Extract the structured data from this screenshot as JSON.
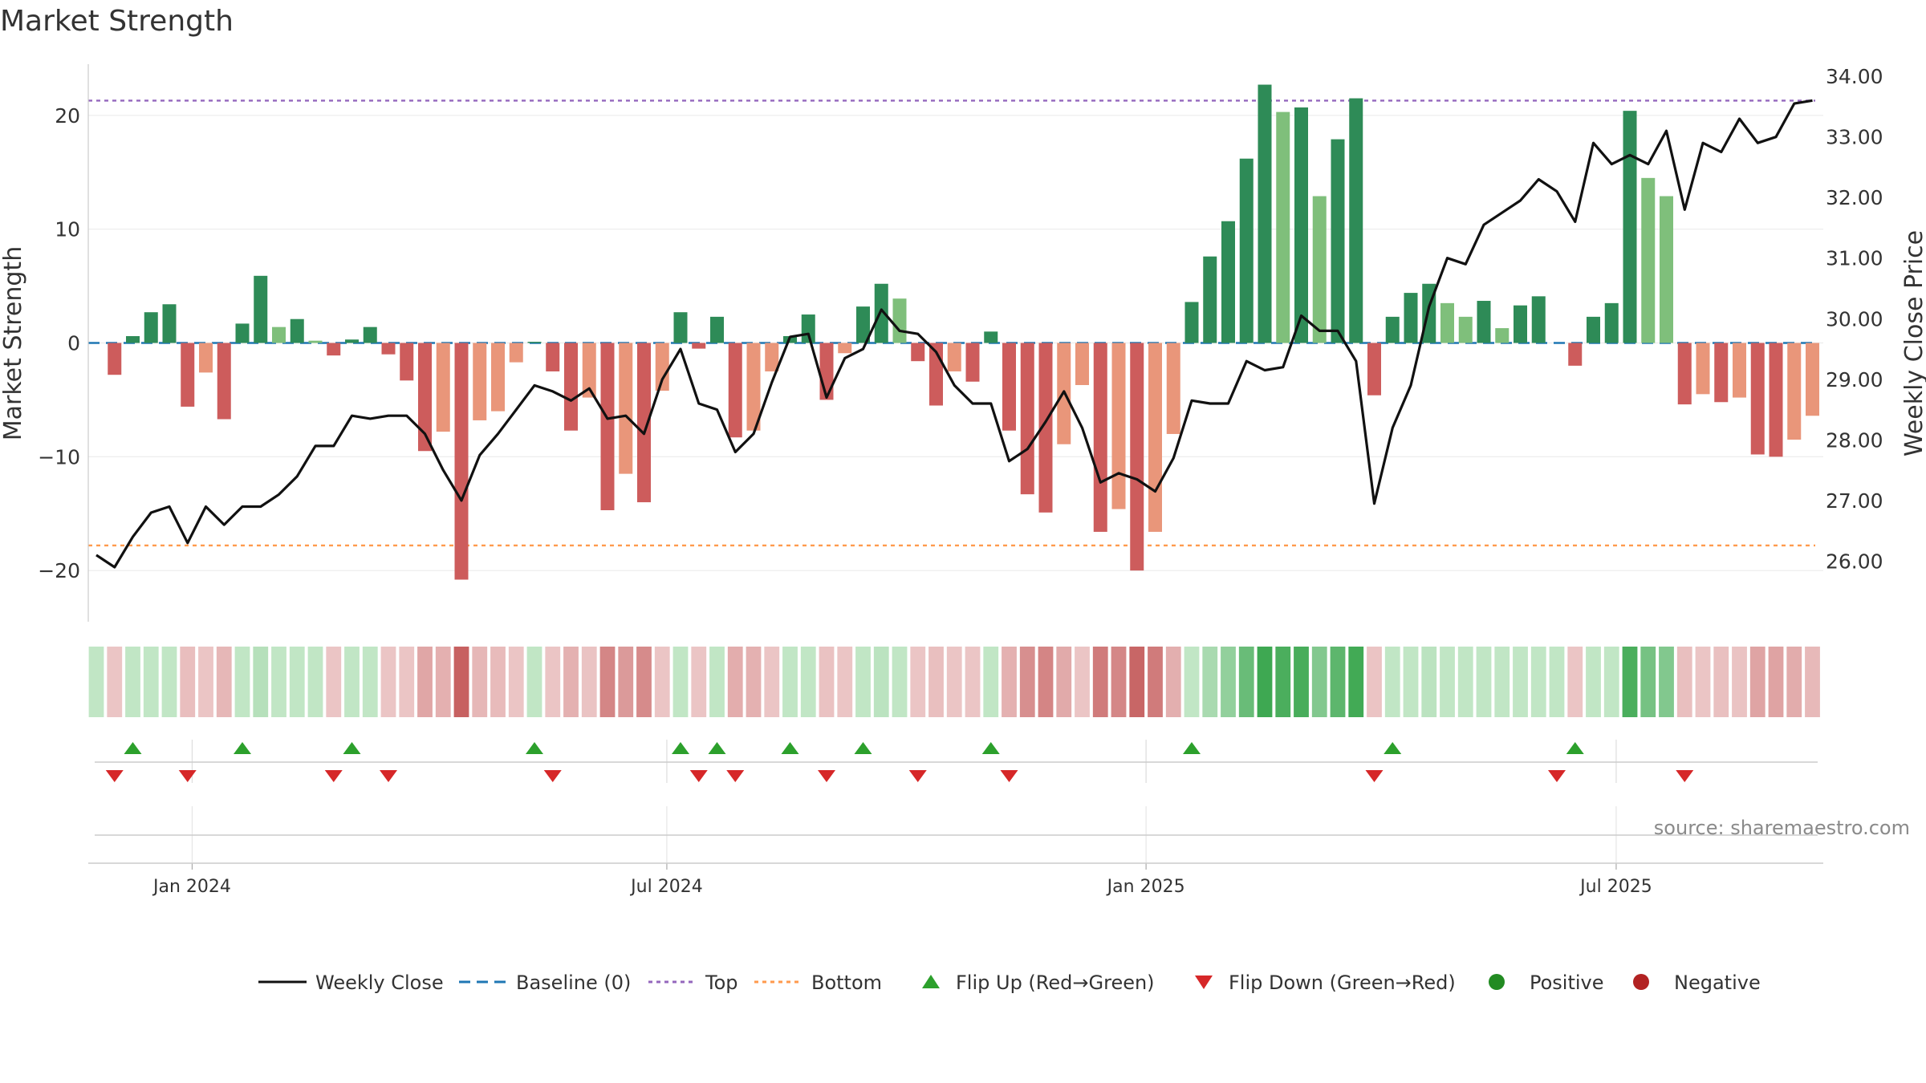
{
  "title": "Market Strength",
  "source_text": "source: sharemaestro.com",
  "colors": {
    "pos_strong": "#2e8b57",
    "pos_light": "#7fbf7b",
    "neg_strong": "#cd5c5c",
    "neg_light": "#e9967a",
    "line": "#111111",
    "baseline": "#1f77b4",
    "top": "#9467bd",
    "bottom": "#ff9a4d",
    "flip_up": "#2ca02c",
    "flip_down": "#d62728",
    "positive": "#228b22",
    "negative": "#b22222"
  },
  "chart_data": {
    "type": "bar",
    "title": "Market Strength",
    "ylabel_left": "Market Strength",
    "ylabel_right": "Weekly Close Price",
    "ylim_left": [
      -24.5,
      24.5
    ],
    "ylim_right": [
      25.0,
      34.2
    ],
    "left_ticks": [
      20,
      10,
      0,
      -10,
      -20
    ],
    "left_tick_labels": [
      "20",
      "10",
      "0",
      "−10",
      "−20"
    ],
    "right_ticks": [
      34,
      33,
      32,
      31,
      30,
      29,
      28,
      27,
      26
    ],
    "right_tick_labels": [
      "34.00",
      "33.00",
      "32.00",
      "31.00",
      "30.00",
      "29.00",
      "28.00",
      "27.00",
      "26.00"
    ],
    "top_level": 21.3,
    "bottom_level": -17.8,
    "x_tick_labels": [
      "Jan 2024",
      "Jul 2024",
      "Jan 2025",
      "Jul 2025"
    ],
    "x_tick_weeks": [
      5.25,
      31.25,
      57.5,
      83.25
    ],
    "strength": [
      0,
      -2.8,
      0.6,
      2.7,
      3.4,
      -5.6,
      -2.6,
      -6.7,
      1.7,
      5.9,
      1.4,
      2.1,
      0.2,
      -1.1,
      0.3,
      1.4,
      -1.0,
      -3.3,
      -9.5,
      -7.8,
      -20.8,
      -6.8,
      -6.0,
      -1.7,
      0.1,
      -2.5,
      -7.7,
      -4.8,
      -14.7,
      -11.5,
      -14.0,
      -4.2,
      2.7,
      -0.5,
      2.3,
      -8.3,
      -7.7,
      -2.5,
      0.6,
      2.5,
      -5.0,
      -0.9,
      3.2,
      5.2,
      3.9,
      -1.6,
      -5.5,
      -2.5,
      -3.4,
      1.0,
      -7.7,
      -13.3,
      -14.9,
      -8.9,
      -3.7,
      -16.6,
      -14.6,
      -20.0,
      -16.6,
      -8.0,
      3.6,
      7.6,
      10.7,
      16.2,
      22.7,
      20.3,
      20.7,
      12.9,
      17.9,
      21.5,
      -4.6,
      2.3,
      4.4,
      5.2,
      3.5,
      2.3,
      3.7,
      1.3,
      3.3,
      4.1,
      0,
      -2.0,
      2.3,
      3.5,
      20.4,
      14.5,
      12.9,
      -5.4,
      -4.5,
      -5.2,
      -4.8,
      -9.8,
      -10.0,
      -8.5,
      -6.4
    ],
    "close": [
      26.1,
      25.9,
      26.4,
      26.8,
      26.9,
      26.3,
      26.9,
      26.6,
      26.9,
      26.9,
      27.1,
      27.4,
      27.9,
      27.9,
      28.4,
      28.35,
      28.4,
      28.4,
      28.1,
      27.5,
      27.0,
      27.75,
      28.1,
      28.5,
      28.9,
      28.8,
      28.65,
      28.85,
      28.35,
      28.4,
      28.1,
      29.0,
      29.5,
      28.6,
      28.5,
      27.8,
      28.1,
      28.95,
      29.7,
      29.75,
      28.7,
      29.35,
      29.5,
      30.15,
      29.8,
      29.75,
      29.45,
      28.9,
      28.6,
      28.6,
      27.65,
      27.85,
      28.3,
      28.8,
      28.2,
      27.3,
      27.45,
      27.35,
      27.15,
      27.7,
      28.65,
      28.6,
      28.6,
      29.3,
      29.15,
      29.2,
      30.05,
      29.8,
      29.8,
      29.3,
      26.95,
      28.2,
      28.9,
      30.2,
      31.0,
      30.9,
      31.55,
      31.75,
      31.95,
      32.3,
      32.1,
      31.6,
      32.9,
      32.55,
      32.7,
      32.55,
      33.1,
      31.8,
      32.9,
      32.75,
      33.3,
      32.9,
      33.0,
      33.55,
      33.6
    ],
    "flip_up_weeks": [
      2,
      8,
      14,
      24,
      32,
      34,
      38,
      42,
      49,
      60,
      71,
      81
    ],
    "flip_down_weeks": [
      1,
      5,
      13,
      16,
      25,
      33,
      35,
      40,
      45,
      50,
      70,
      80,
      87
    ],
    "legend": [
      "Weekly Close",
      "Baseline (0)",
      "Top",
      "Bottom",
      "Flip Up (Red→Green)",
      "Flip Down (Green→Red)",
      "Positive",
      "Negative"
    ]
  }
}
